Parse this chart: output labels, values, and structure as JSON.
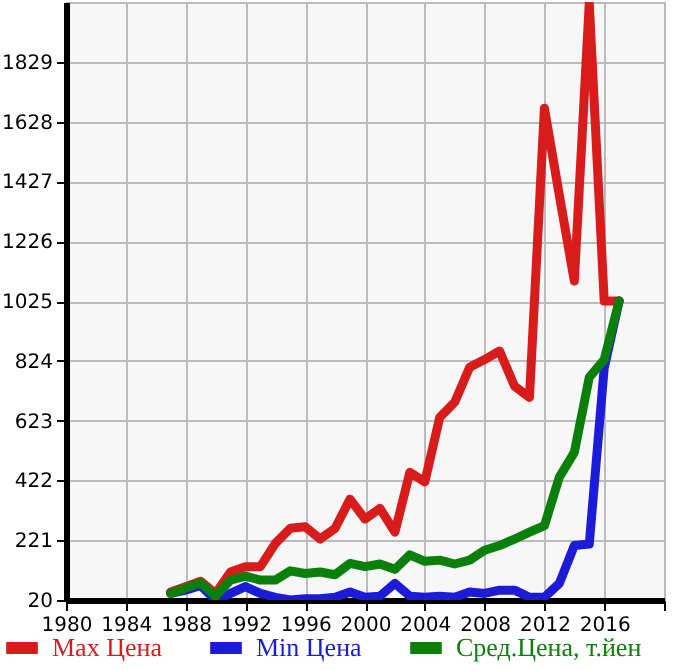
{
  "chart_data": {
    "type": "line",
    "x": [
      1987,
      1988,
      1989,
      1990,
      1991,
      1992,
      1993,
      1994,
      1995,
      1996,
      1997,
      1998,
      1999,
      2000,
      2001,
      2002,
      2003,
      2004,
      2005,
      2006,
      2007,
      2008,
      2009,
      2010,
      2011,
      2012,
      2013,
      2014,
      2015,
      2016,
      2017
    ],
    "series": [
      {
        "name": "Max Цена",
        "color": "#d81c1c",
        "values": [
          47,
          65,
          83,
          42,
          114,
          132,
          132,
          210,
          261,
          266,
          225,
          261,
          359,
          292,
          328,
          248,
          449,
          417,
          634,
          685,
          802,
          828,
          857,
          739,
          701,
          1673,
          1380,
          1092,
          2025,
          1025,
          1025
        ]
      },
      {
        "name": "Min Цена",
        "color": "#1c1cd8",
        "values": [
          42,
          53,
          69,
          20,
          42,
          65,
          42,
          29,
          20,
          24,
          24,
          29,
          47,
          29,
          33,
          76,
          33,
          29,
          33,
          29,
          47,
          42,
          53,
          53,
          29,
          29,
          76,
          203,
          208,
          800,
          1025
        ]
      },
      {
        "name": "Сред.Цена, т.йен",
        "color": "#0a800a",
        "values": [
          42,
          60,
          78,
          33,
          87,
          100,
          87,
          87,
          118,
          109,
          114,
          105,
          143,
          132,
          141,
          123,
          172,
          150,
          154,
          141,
          154,
          187,
          203,
          225,
          248,
          270,
          433,
          516,
          768,
          828,
          1025
        ]
      }
    ],
    "xlim": [
      1980,
      2020
    ],
    "xticks": [
      1980,
      1984,
      1988,
      1992,
      1996,
      2000,
      2004,
      2008,
      2012,
      2016,
      {
        "value": 2020,
        "label": null
      }
    ],
    "ylim": [
      20,
      2030
    ],
    "yticks": [
      20,
      221,
      422,
      623,
      824,
      1025,
      1226,
      1427,
      1628,
      1829
    ],
    "grid": true,
    "legend": "bottom",
    "marker": "none",
    "line_style": "solid"
  }
}
